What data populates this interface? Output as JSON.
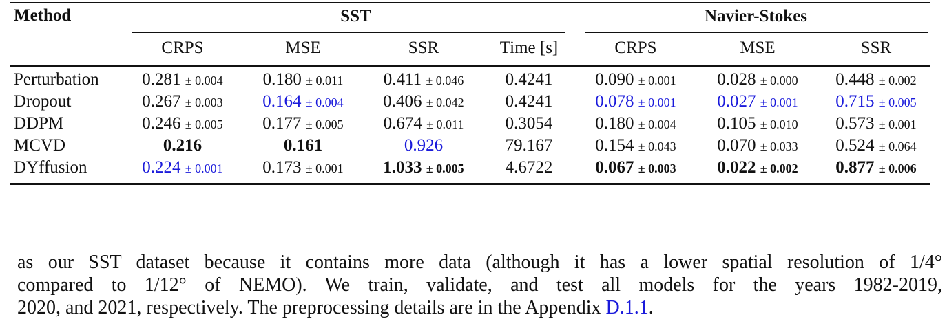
{
  "table": {
    "method_header": "Method",
    "groups": [
      {
        "label": "SST",
        "span": 4
      },
      {
        "label": "Navier-Stokes",
        "span": 3
      }
    ],
    "columns": [
      "CRPS",
      "MSE",
      "SSR",
      "Time [s]",
      "CRPS",
      "MSE",
      "SSR"
    ],
    "rows": [
      {
        "method": "Perturbation",
        "cells": [
          {
            "value": "0.281",
            "std": "± 0.004"
          },
          {
            "value": "0.180",
            "std": "± 0.011"
          },
          {
            "value": "0.411",
            "std": "± 0.046"
          },
          {
            "value": "0.4241"
          },
          {
            "value": "0.090",
            "std": "± 0.001"
          },
          {
            "value": "0.028",
            "std": "± 0.000"
          },
          {
            "value": "0.448",
            "std": "± 0.002"
          }
        ]
      },
      {
        "method": "Dropout",
        "cells": [
          {
            "value": "0.267",
            "std": "± 0.003"
          },
          {
            "value": "0.164",
            "std": "± 0.004",
            "style": "blue"
          },
          {
            "value": "0.406",
            "std": "± 0.042"
          },
          {
            "value": "0.4241"
          },
          {
            "value": "0.078",
            "std": "± 0.001",
            "style": "blue"
          },
          {
            "value": "0.027",
            "std": "± 0.001",
            "style": "blue"
          },
          {
            "value": "0.715",
            "std": "± 0.005",
            "style": "blue"
          }
        ]
      },
      {
        "method": "DDPM",
        "cells": [
          {
            "value": "0.246",
            "std": "± 0.005"
          },
          {
            "value": "0.177",
            "std": "± 0.005"
          },
          {
            "value": "0.674",
            "std": "± 0.011"
          },
          {
            "value": "0.3054"
          },
          {
            "value": "0.180",
            "std": "± 0.004"
          },
          {
            "value": "0.105",
            "std": "± 0.010"
          },
          {
            "value": "0.573",
            "std": "± 0.001"
          }
        ]
      },
      {
        "method": "MCVD",
        "cells": [
          {
            "value": "0.216",
            "style": "bold"
          },
          {
            "value": "0.161",
            "style": "bold"
          },
          {
            "value": "0.926",
            "style": "blue"
          },
          {
            "value": "79.167"
          },
          {
            "value": "0.154",
            "std": "± 0.043"
          },
          {
            "value": "0.070",
            "std": "± 0.033"
          },
          {
            "value": "0.524",
            "std": "± 0.064"
          }
        ]
      },
      {
        "method": "DYffusion",
        "cells": [
          {
            "value": "0.224",
            "std": "± 0.001",
            "style": "blue"
          },
          {
            "value": "0.173",
            "std": "± 0.001"
          },
          {
            "value": "1.033",
            "std": "± 0.005",
            "style": "bold"
          },
          {
            "value": "4.6722"
          },
          {
            "value": "0.067",
            "std": "± 0.003",
            "style": "bold"
          },
          {
            "value": "0.022",
            "std": "± 0.002",
            "style": "bold"
          },
          {
            "value": "0.877",
            "std": "± 0.006",
            "style": "bold"
          }
        ]
      }
    ]
  },
  "paragraph": {
    "lines": [
      "as our SST dataset because it contains more data (although it has a lower spatial resolution of 1/4°",
      "compared to 1/12° of NEMO). We train, validate, and test all models for the years 1982-2019,"
    ],
    "last_line": {
      "text": "2020, and 2021, respectively. The preprocessing details are in the Appendix",
      "link": "D.1.1",
      "end": "."
    }
  }
}
